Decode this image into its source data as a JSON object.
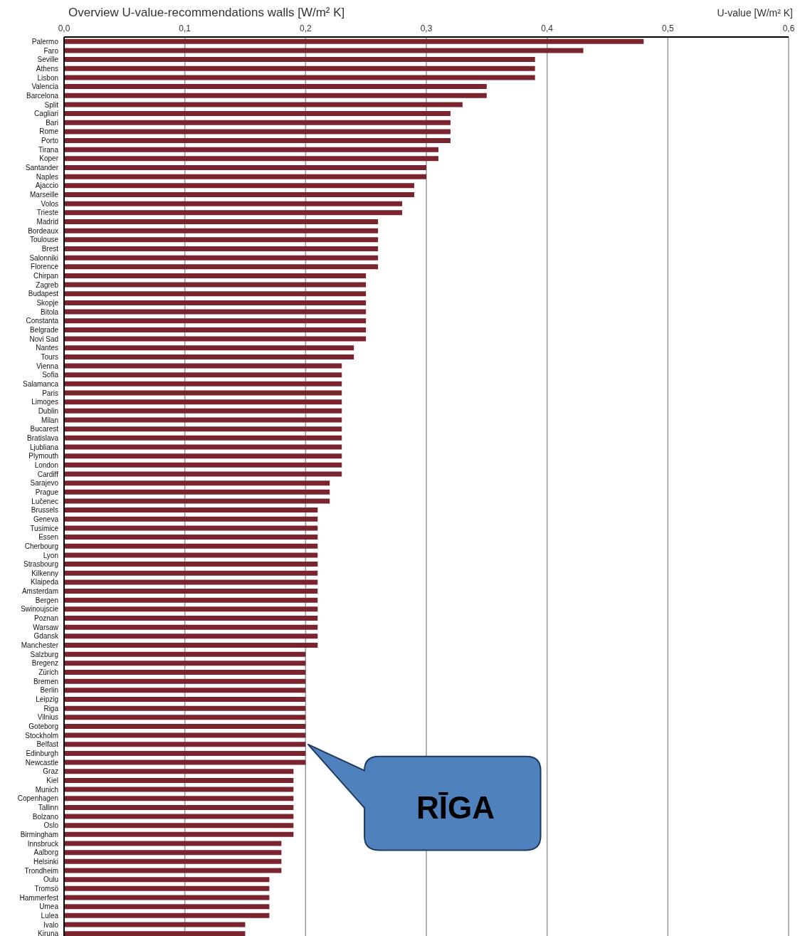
{
  "chart_data": {
    "type": "bar",
    "orientation": "horizontal",
    "title": "Overview U-value-recommendations walls [W/m² K]",
    "xlabel": "U-value [W/m² K]",
    "categories": [
      "Palermo",
      "Faro",
      "Seville",
      "Athens",
      "Lisbon",
      "Valencia",
      "Barcelona",
      "Split",
      "Cagliari",
      "Bari",
      "Rome",
      "Porto",
      "Tirana",
      "Koper",
      "Santander",
      "Naples",
      "Ajaccio",
      "Marseille",
      "Volos",
      "Trieste",
      "Madrid",
      "Bordeaux",
      "Toulouse",
      "Brest",
      "Salonniki",
      "Florence",
      "Chirpan",
      "Zagreb",
      "Budapest",
      "Skopje",
      "Bitola",
      "Constanta",
      "Belgrade",
      "Novi Sad",
      "Nantes",
      "Tours",
      "Vienna",
      "Sofia",
      "Salamanca",
      "Paris",
      "Limoges",
      "Dublin",
      "Milan",
      "Bucarest",
      "Bratislava",
      "Ljubliana",
      "Plymouth",
      "London",
      "Cardiff",
      "Sarajevo",
      "Prague",
      "Lučenec",
      "Brussels",
      "Geneva",
      "Tusimice",
      "Essen",
      "Cherbourg",
      "Lyon",
      "Strasbourg",
      "Kilkenny",
      "Klaipeda",
      "Amsterdam",
      "Bergen",
      "Swinoujscie",
      "Poznan",
      "Warsaw",
      "Gdansk",
      "Manchester",
      "Salzburg",
      "Bregenz",
      "Zürich",
      "Bremen",
      "Berlin",
      "Leipzig",
      "Riga",
      "Vilnius",
      "Goteborg",
      "Stockholm",
      "Belfast",
      "Edinburgh",
      "Newcastle",
      "Graz",
      "Kiel",
      "Munich",
      "Copenhagen",
      "Tallinn",
      "Bolzano",
      "Oslo",
      "Birmingham",
      "Innsbruck",
      "Aalborg",
      "Helsinki",
      "Trondheim",
      "Oulu",
      "Tromsö",
      "Hammerfest",
      "Umea",
      "Lulea",
      "Ivalo",
      "Kiruna"
    ],
    "values": [
      0.48,
      0.43,
      0.39,
      0.39,
      0.39,
      0.35,
      0.35,
      0.33,
      0.32,
      0.32,
      0.32,
      0.32,
      0.31,
      0.31,
      0.3,
      0.3,
      0.29,
      0.29,
      0.28,
      0.28,
      0.26,
      0.26,
      0.26,
      0.26,
      0.26,
      0.26,
      0.25,
      0.25,
      0.25,
      0.25,
      0.25,
      0.25,
      0.25,
      0.25,
      0.24,
      0.24,
      0.23,
      0.23,
      0.23,
      0.23,
      0.23,
      0.23,
      0.23,
      0.23,
      0.23,
      0.23,
      0.23,
      0.23,
      0.23,
      0.22,
      0.22,
      0.22,
      0.21,
      0.21,
      0.21,
      0.21,
      0.21,
      0.21,
      0.21,
      0.21,
      0.21,
      0.21,
      0.21,
      0.21,
      0.21,
      0.21,
      0.21,
      0.21,
      0.2,
      0.2,
      0.2,
      0.2,
      0.2,
      0.2,
      0.2,
      0.2,
      0.2,
      0.2,
      0.2,
      0.2,
      0.2,
      0.19,
      0.19,
      0.19,
      0.19,
      0.19,
      0.19,
      0.19,
      0.19,
      0.18,
      0.18,
      0.18,
      0.18,
      0.17,
      0.17,
      0.17,
      0.17,
      0.17,
      0.15,
      0.15
    ],
    "color": "#7a2430",
    "xlim": [
      0,
      0.6
    ],
    "xticks": [
      {
        "value": 0,
        "label": "0,0"
      },
      {
        "value": 0.1,
        "label": "0,1"
      },
      {
        "value": 0.2,
        "label": "0,2"
      },
      {
        "value": 0.3,
        "label": "0,3"
      },
      {
        "value": 0.4,
        "label": "0,4"
      },
      {
        "value": 0.5,
        "label": "0,5"
      },
      {
        "value": 0.6,
        "label": "0,6"
      }
    ],
    "grid": "x",
    "legend": false,
    "annotations": [
      "RĪGA"
    ]
  }
}
